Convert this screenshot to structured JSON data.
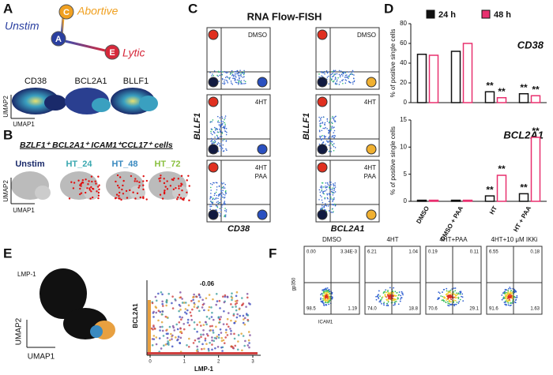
{
  "panel_a": {
    "letter": "A",
    "nodes": [
      "C",
      "A",
      "E"
    ],
    "states": [
      "Unstim",
      "Abortive",
      "Lytic"
    ],
    "genes": [
      "CD38",
      "BCL2A1",
      "BLLF1"
    ],
    "y_axis": "UMAP2",
    "x_axis": "UMAP1"
  },
  "panel_b": {
    "letter": "B",
    "title": "BZLF1⁺ BCL2A1⁺ ICAM1⁺CCL17⁺ cells",
    "groups": [
      "Unstim",
      "HT_24",
      "HT_48",
      "HT_72"
    ],
    "y_axis": "UMAP2",
    "x_axis": "UMAP1"
  },
  "panel_c": {
    "letter": "C",
    "title": "RNA Flow-FISH",
    "rows": [
      [
        "DMSO"
      ],
      [
        "4HT"
      ],
      [
        "4HT",
        "PAA"
      ]
    ],
    "columns": [
      {
        "x_label": "CD38",
        "y_label": "BLLF1"
      },
      {
        "x_label": "BCL2A1",
        "y_label": "BLLF1"
      }
    ]
  },
  "panel_d": {
    "letter": "D",
    "series": [
      {
        "name": "24 h",
        "color": "#111111"
      },
      {
        "name": "48 h",
        "color": "#e8306f"
      }
    ],
    "categories": [
      "DMSO",
      "DMSO + PAA",
      "HT",
      "HT + PAA"
    ],
    "charts": [
      {
        "title": "CD38",
        "ylabel": "% of positive single cells",
        "ylim": [
          0,
          80
        ],
        "yticks": [
          0,
          20,
          40,
          60,
          80
        ],
        "values": [
          [
            49,
            52,
            11,
            9
          ],
          [
            48,
            60,
            5,
            7
          ]
        ],
        "significance": [
          [
            null,
            null,
            "**",
            "**"
          ],
          [
            null,
            null,
            "**",
            "**"
          ]
        ]
      },
      {
        "title": "BCL2A1",
        "ylabel": "% of positive single cells",
        "ylim": [
          0,
          15
        ],
        "yticks": [
          0,
          5,
          10,
          15
        ],
        "values": [
          [
            0.2,
            0.2,
            1.0,
            1.4
          ],
          [
            0.2,
            0.2,
            4.8,
            11.8
          ]
        ],
        "significance": [
          [
            null,
            null,
            "**",
            "**"
          ],
          [
            null,
            null,
            "**",
            "**"
          ]
        ]
      }
    ]
  },
  "panel_e": {
    "letter": "E",
    "gene": "LMP-1",
    "correlation": "-0.06",
    "scatter_y": "BCL2A1",
    "scatter_x": "LMP-1",
    "xticks": [
      0,
      1,
      2,
      3
    ],
    "y_axis": "UMAP2",
    "x_axis": "UMAP1"
  },
  "panel_f": {
    "letter": "F",
    "y_axis": "gp350",
    "x_axis": "ICAM1",
    "plots": [
      {
        "label": "DMSO",
        "quadrants": [
          "0.00",
          "3.34E-3",
          "98.5",
          "1.19"
        ]
      },
      {
        "label": "4HT",
        "quadrants": [
          "6.21",
          "1.04",
          "74.0",
          "18.8"
        ]
      },
      {
        "label": "4HT+PAA",
        "quadrants": [
          "0.19",
          "0.11",
          "70.6",
          "29.1"
        ]
      },
      {
        "label": "4HT+10 μM IKKi",
        "quadrants": [
          "6.55",
          "0.18",
          "91.6",
          "1.63"
        ]
      }
    ]
  }
}
